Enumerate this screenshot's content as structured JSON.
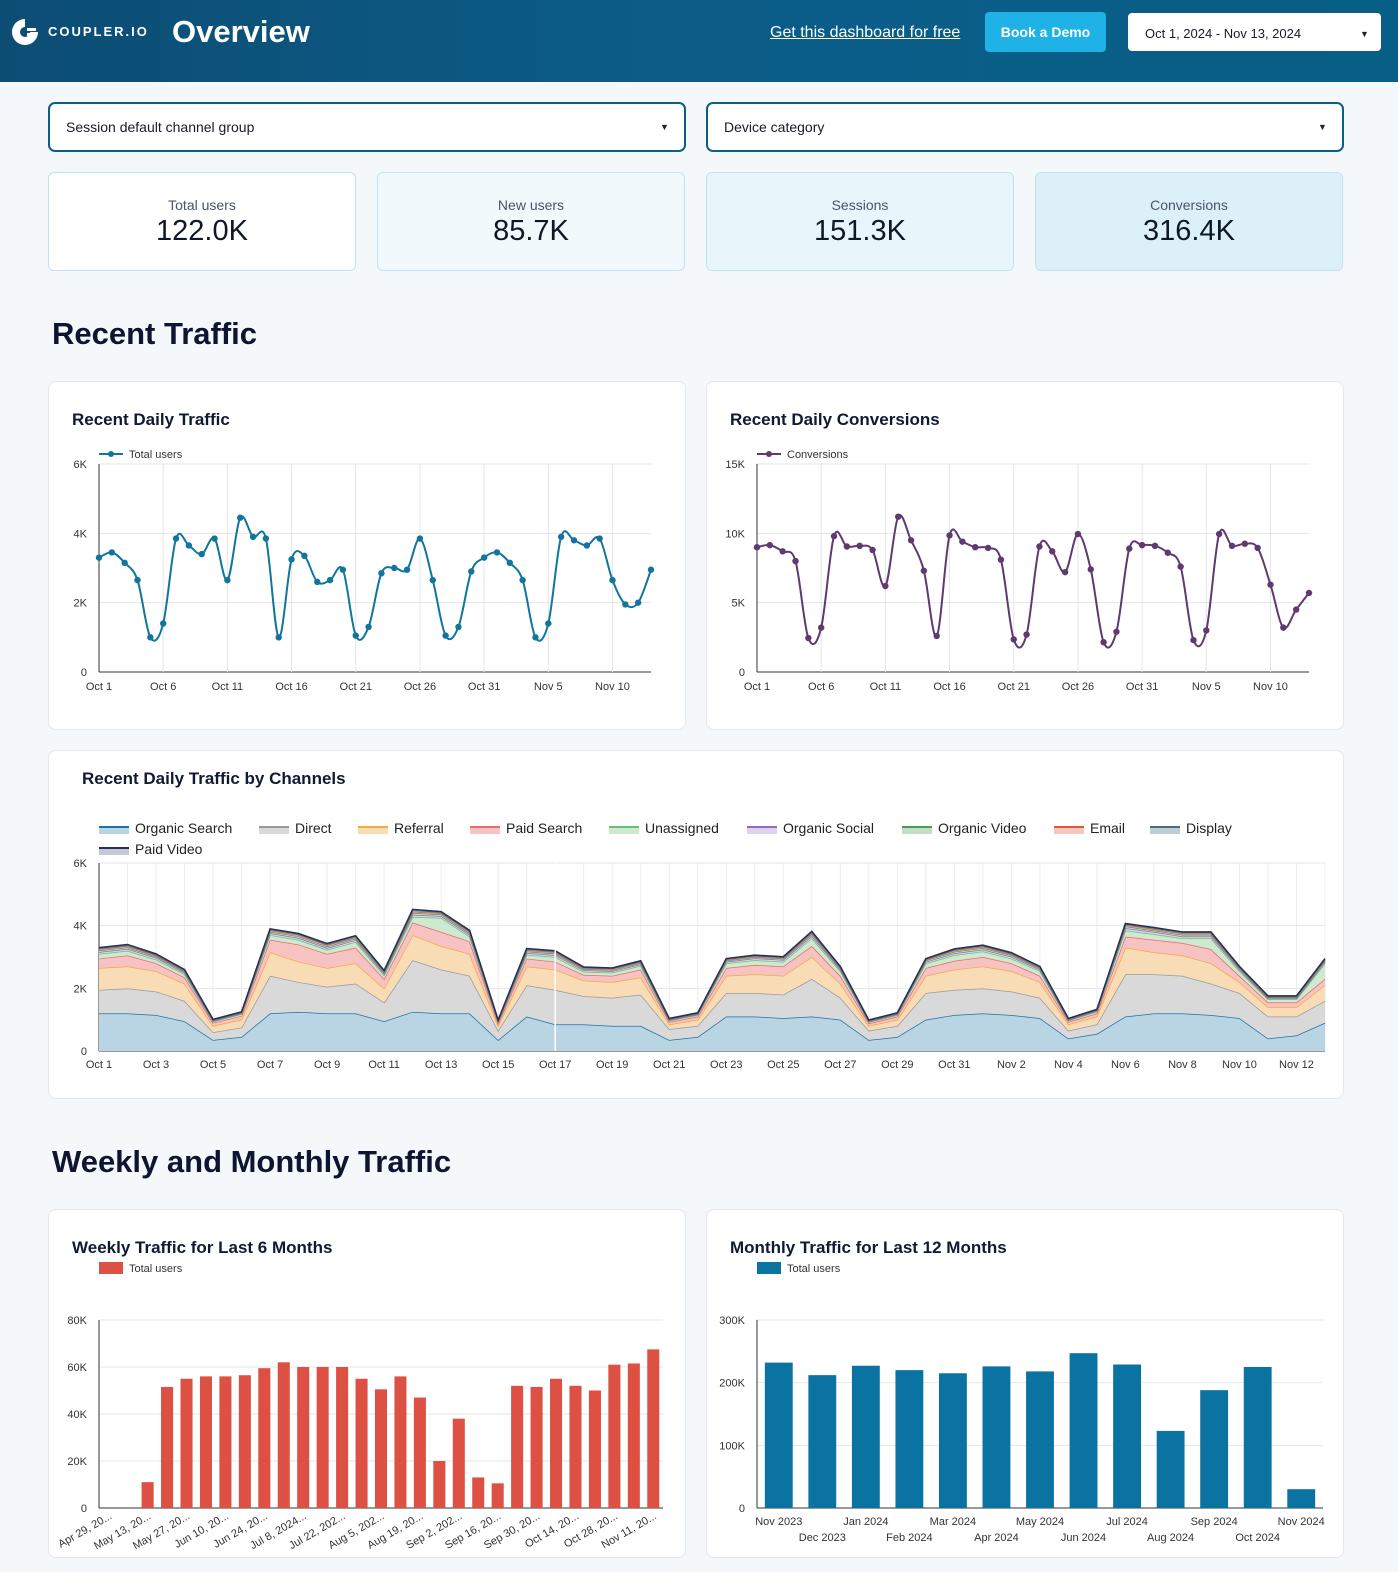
{
  "header": {
    "logo_text": "COUPLER.IO",
    "title": "Overview",
    "free_link": "Get this dashboard for free",
    "demo_button": "Book a Demo",
    "date_range": "Oct 1, 2024 - Nov 13, 2024"
  },
  "filters": {
    "channel": "Session default channel group",
    "device": "Device category"
  },
  "kpis": [
    {
      "label": "Total users",
      "value": "122.0K"
    },
    {
      "label": "New users",
      "value": "85.7K"
    },
    {
      "label": "Sessions",
      "value": "151.3K"
    },
    {
      "label": "Conversions",
      "value": "316.4K"
    }
  ],
  "sections": {
    "recent": "Recent Traffic",
    "weekly_monthly": "Weekly and Monthly Traffic"
  },
  "colors": {
    "users": "#11759c",
    "conversions": "#5f3970",
    "weekly_bar": "#dd5145",
    "monthly_bar": "#0a73a2"
  },
  "chart_data": [
    {
      "id": "daily_traffic",
      "type": "line",
      "title": "Recent Daily Traffic",
      "legend": "Total users",
      "ylim": [
        0,
        6000
      ],
      "yticks": [
        "0",
        "2K",
        "4K",
        "6K"
      ],
      "xticks": [
        "Oct 1",
        "Oct 6",
        "Oct 11",
        "Oct 16",
        "Oct 21",
        "Oct 26",
        "Oct 31",
        "Nov 5",
        "Nov 10"
      ],
      "x": [
        "Oct 1",
        "Oct 2",
        "Oct 3",
        "Oct 4",
        "Oct 5",
        "Oct 6",
        "Oct 7",
        "Oct 8",
        "Oct 9",
        "Oct 10",
        "Oct 11",
        "Oct 12",
        "Oct 13",
        "Oct 14",
        "Oct 15",
        "Oct 16",
        "Oct 17",
        "Oct 18",
        "Oct 19",
        "Oct 20",
        "Oct 21",
        "Oct 22",
        "Oct 23",
        "Oct 24",
        "Oct 25",
        "Oct 26",
        "Oct 27",
        "Oct 28",
        "Oct 29",
        "Oct 30",
        "Oct 31",
        "Nov 1",
        "Nov 2",
        "Nov 3",
        "Nov 4",
        "Nov 5",
        "Nov 6",
        "Nov 7",
        "Nov 8",
        "Nov 9",
        "Nov 10",
        "Nov 11",
        "Nov 12",
        "Nov 13"
      ],
      "values": [
        3300,
        3450,
        3150,
        2650,
        1000,
        1400,
        3850,
        3650,
        3400,
        3850,
        2650,
        4450,
        3900,
        3850,
        1000,
        3250,
        3350,
        2600,
        2650,
        2950,
        1050,
        1300,
        2850,
        3000,
        2950,
        3850,
        2650,
        1050,
        1300,
        2900,
        3300,
        3450,
        3150,
        2650,
        1000,
        1400,
        3900,
        3800,
        3650,
        3850,
        2650,
        1950,
        2000,
        2950
      ]
    },
    {
      "id": "daily_conversions",
      "type": "line",
      "title": "Recent Daily Conversions",
      "legend": "Conversions",
      "ylim": [
        0,
        15000
      ],
      "yticks": [
        "0",
        "5K",
        "10K",
        "15K"
      ],
      "xticks": [
        "Oct 1",
        "Oct 6",
        "Oct 11",
        "Oct 16",
        "Oct 21",
        "Oct 26",
        "Oct 31",
        "Nov 5",
        "Nov 10"
      ],
      "x": [
        "Oct 1",
        "Oct 2",
        "Oct 3",
        "Oct 4",
        "Oct 5",
        "Oct 6",
        "Oct 7",
        "Oct 8",
        "Oct 9",
        "Oct 10",
        "Oct 11",
        "Oct 12",
        "Oct 13",
        "Oct 14",
        "Oct 15",
        "Oct 16",
        "Oct 17",
        "Oct 18",
        "Oct 19",
        "Oct 20",
        "Oct 21",
        "Oct 22",
        "Oct 23",
        "Oct 24",
        "Oct 25",
        "Oct 26",
        "Oct 27",
        "Oct 28",
        "Oct 29",
        "Oct 30",
        "Oct 31",
        "Nov 1",
        "Nov 2",
        "Nov 3",
        "Nov 4",
        "Nov 5",
        "Nov 6",
        "Nov 7",
        "Nov 8",
        "Nov 9",
        "Nov 10",
        "Nov 11",
        "Nov 12",
        "Nov 13"
      ],
      "values": [
        9000,
        9150,
        8700,
        8000,
        2450,
        3200,
        9800,
        9050,
        9100,
        8800,
        6200,
        11200,
        9500,
        7300,
        2600,
        9850,
        9400,
        9000,
        8950,
        8100,
        2350,
        2700,
        9050,
        8700,
        7200,
        9950,
        7400,
        2150,
        2900,
        8900,
        9150,
        9100,
        8600,
        7600,
        2300,
        3000,
        9950,
        9100,
        9250,
        8950,
        6300,
        3200,
        4500,
        5700
      ]
    },
    {
      "id": "channels",
      "type": "area",
      "title": "Recent Daily Traffic by Channels",
      "ylim": [
        0,
        6000
      ],
      "yticks": [
        "0",
        "2K",
        "4K",
        "6K"
      ],
      "xticks": [
        "Oct 1",
        "Oct 3",
        "Oct 5",
        "Oct 7",
        "Oct 9",
        "Oct 11",
        "Oct 13",
        "Oct 15",
        "Oct 17",
        "Oct 19",
        "Oct 21",
        "Oct 23",
        "Oct 25",
        "Oct 27",
        "Oct 29",
        "Oct 31",
        "Nov 2",
        "Nov 4",
        "Nov 6",
        "Nov 8",
        "Nov 10",
        "Nov 12"
      ],
      "series": [
        {
          "name": "Organic Search",
          "color": "#1c74a4",
          "fill": "#b9d4e3",
          "values": [
            1200,
            1200,
            1150,
            950,
            350,
            450,
            1200,
            1250,
            1200,
            1200,
            950,
            1250,
            1200,
            1200,
            350,
            1100,
            850,
            850,
            800,
            800,
            350,
            450,
            1100,
            1100,
            1050,
            1100,
            1000,
            350,
            450,
            1000,
            1150,
            1200,
            1150,
            1050,
            400,
            550,
            1100,
            1200,
            1200,
            1150,
            1050,
            400,
            500,
            900
          ]
        },
        {
          "name": "Direct",
          "color": "#9a9a9a",
          "fill": "#d9d9d9",
          "values": [
            750,
            800,
            750,
            650,
            250,
            300,
            1200,
            950,
            850,
            950,
            600,
            1650,
            1400,
            1200,
            300,
            1000,
            1100,
            900,
            900,
            1000,
            350,
            350,
            750,
            750,
            750,
            1200,
            700,
            300,
            350,
            850,
            800,
            800,
            750,
            650,
            250,
            300,
            1350,
            1250,
            1200,
            1000,
            800,
            700,
            600,
            700
          ]
        },
        {
          "name": "Referral",
          "color": "#f4a947",
          "fill": "#f8dcb5",
          "values": [
            700,
            700,
            650,
            550,
            200,
            250,
            750,
            650,
            600,
            650,
            450,
            800,
            750,
            700,
            150,
            600,
            650,
            500,
            500,
            550,
            150,
            200,
            550,
            600,
            600,
            700,
            450,
            150,
            200,
            550,
            650,
            700,
            650,
            500,
            200,
            250,
            850,
            700,
            650,
            650,
            350,
            300,
            300,
            500
          ]
        },
        {
          "name": "Paid Search",
          "color": "#ec6a6a",
          "fill": "#f6c2c2",
          "values": [
            300,
            350,
            250,
            200,
            100,
            120,
            400,
            550,
            450,
            500,
            300,
            400,
            450,
            400,
            80,
            250,
            250,
            180,
            200,
            250,
            80,
            100,
            250,
            300,
            300,
            350,
            250,
            80,
            100,
            250,
            280,
            300,
            250,
            200,
            80,
            100,
            350,
            400,
            400,
            450,
            200,
            150,
            150,
            200
          ]
        },
        {
          "name": "Unassigned",
          "color": "#6fbf73",
          "fill": "#cde9cf",
          "values": [
            150,
            150,
            120,
            100,
            40,
            60,
            150,
            150,
            130,
            180,
            120,
            180,
            450,
            150,
            40,
            120,
            150,
            100,
            100,
            120,
            40,
            50,
            150,
            150,
            150,
            250,
            150,
            40,
            50,
            150,
            180,
            180,
            150,
            150,
            40,
            60,
            200,
            180,
            150,
            350,
            150,
            100,
            100,
            500
          ]
        },
        {
          "name": "Organic Social",
          "color": "#8e6dbf",
          "fill": "#ddd2ee",
          "values": [
            60,
            60,
            60,
            50,
            20,
            20,
            60,
            60,
            60,
            60,
            50,
            70,
            60,
            60,
            20,
            60,
            60,
            50,
            50,
            50,
            20,
            20,
            50,
            60,
            60,
            70,
            50,
            20,
            20,
            50,
            60,
            60,
            60,
            50,
            20,
            20,
            70,
            70,
            60,
            60,
            50,
            30,
            30,
            50
          ]
        },
        {
          "name": "Organic Video",
          "color": "#4c9a56",
          "fill": "#c3dec7",
          "values": [
            50,
            50,
            40,
            40,
            20,
            20,
            50,
            50,
            50,
            50,
            40,
            60,
            50,
            50,
            20,
            50,
            50,
            40,
            40,
            40,
            20,
            20,
            40,
            40,
            40,
            60,
            40,
            20,
            20,
            40,
            50,
            50,
            50,
            40,
            20,
            20,
            60,
            50,
            50,
            50,
            40,
            30,
            30,
            40
          ]
        },
        {
          "name": "Email",
          "color": "#e5553b",
          "fill": "#f4c8be",
          "values": [
            40,
            40,
            30,
            30,
            10,
            10,
            40,
            40,
            40,
            40,
            30,
            40,
            40,
            40,
            10,
            40,
            40,
            30,
            30,
            30,
            10,
            10,
            30,
            30,
            30,
            40,
            30,
            10,
            10,
            30,
            40,
            40,
            30,
            30,
            10,
            10,
            40,
            40,
            40,
            40,
            30,
            20,
            20,
            30
          ]
        },
        {
          "name": "Display",
          "color": "#436f7d",
          "fill": "#bccdd3",
          "values": [
            30,
            30,
            30,
            20,
            10,
            10,
            30,
            30,
            30,
            30,
            20,
            40,
            30,
            30,
            10,
            30,
            30,
            20,
            20,
            20,
            10,
            10,
            20,
            20,
            20,
            30,
            20,
            10,
            10,
            20,
            30,
            30,
            30,
            20,
            10,
            10,
            30,
            30,
            30,
            30,
            20,
            20,
            20,
            20
          ]
        },
        {
          "name": "Paid Video",
          "color": "#23305a",
          "fill": "#c3c7d6",
          "values": [
            20,
            20,
            20,
            10,
            10,
            10,
            20,
            20,
            20,
            20,
            10,
            30,
            20,
            20,
            10,
            20,
            20,
            10,
            10,
            20,
            10,
            10,
            10,
            10,
            10,
            20,
            10,
            10,
            10,
            10,
            20,
            20,
            20,
            10,
            10,
            10,
            20,
            20,
            20,
            20,
            10,
            10,
            10,
            10
          ]
        }
      ]
    },
    {
      "id": "weekly",
      "type": "bar",
      "title": "Weekly Traffic for Last 6 Months",
      "legend": "Total users",
      "ylim": [
        0,
        80000
      ],
      "yticks": [
        "0",
        "20K",
        "40K",
        "60K",
        "80K"
      ],
      "xticks": [
        "Apr 29, 20...",
        "May 13, 20...",
        "May 27, 20...",
        "Jun 10, 20...",
        "Jun 24, 20...",
        "Jul 8, 2024...",
        "Jul 22, 202...",
        "Aug 5, 202...",
        "Aug 19, 20...",
        "Sep 2, 202...",
        "Sep 16, 20...",
        "Sep 30, 20...",
        "Oct 14, 20...",
        "Oct 28, 20...",
        "Nov 11, 20..."
      ],
      "values": [
        0,
        0,
        11000,
        51500,
        55000,
        56000,
        56000,
        56500,
        59500,
        62000,
        60000,
        60000,
        60000,
        55000,
        50500,
        56000,
        47000,
        20000,
        38000,
        13000,
        10500,
        52000,
        51500,
        55000,
        52000,
        50000,
        61000,
        61500,
        67500
      ]
    },
    {
      "id": "monthly",
      "type": "bar",
      "title": "Monthly Traffic for Last 12 Months",
      "legend": "Total users",
      "ylim": [
        0,
        300000
      ],
      "yticks": [
        "0",
        "100K",
        "200K",
        "300K"
      ],
      "categories": [
        "Nov 2023",
        "Dec 2023",
        "Jan 2024",
        "Feb 2024",
        "Mar 2024",
        "Apr 2024",
        "May 2024",
        "Jun 2024",
        "Jul 2024",
        "Aug 2024",
        "Sep 2024",
        "Oct 2024",
        "Nov 2024"
      ],
      "values": [
        232000,
        212000,
        227000,
        220000,
        215000,
        226000,
        218000,
        247000,
        229000,
        123000,
        188000,
        225000,
        30000
      ]
    }
  ]
}
